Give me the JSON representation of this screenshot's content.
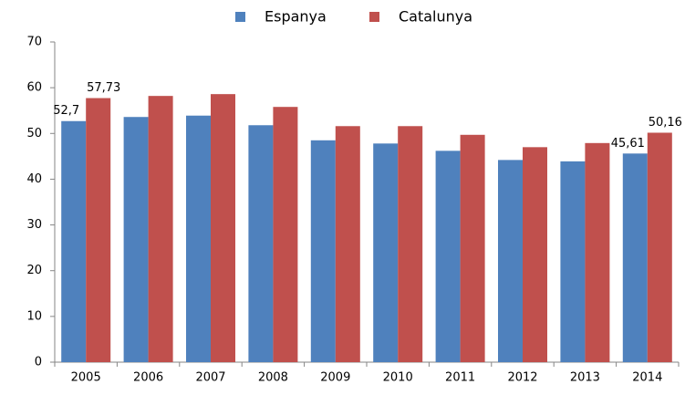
{
  "chart_data": {
    "type": "bar",
    "categories": [
      "2005",
      "2006",
      "2007",
      "2008",
      "2009",
      "2010",
      "2011",
      "2012",
      "2013",
      "2014"
    ],
    "series": [
      {
        "name": "Espanya",
        "color": "#4f81bd",
        "values": [
          52.7,
          53.6,
          53.9,
          51.8,
          48.5,
          47.8,
          46.2,
          44.2,
          43.9,
          45.61
        ],
        "value_labels": [
          "52,7",
          null,
          null,
          null,
          null,
          null,
          null,
          null,
          null,
          "45,61"
        ]
      },
      {
        "name": "Catalunya",
        "color": "#c0504d",
        "values": [
          57.73,
          58.2,
          58.6,
          55.8,
          51.6,
          51.6,
          49.7,
          47.0,
          47.9,
          50.16
        ],
        "value_labels": [
          "57,73",
          null,
          null,
          null,
          null,
          null,
          null,
          null,
          null,
          "50,16"
        ]
      }
    ],
    "ylim": [
      0,
      70
    ],
    "yticks": [
      0,
      10,
      20,
      30,
      40,
      50,
      60,
      70
    ],
    "grid": false,
    "legend": "top"
  }
}
